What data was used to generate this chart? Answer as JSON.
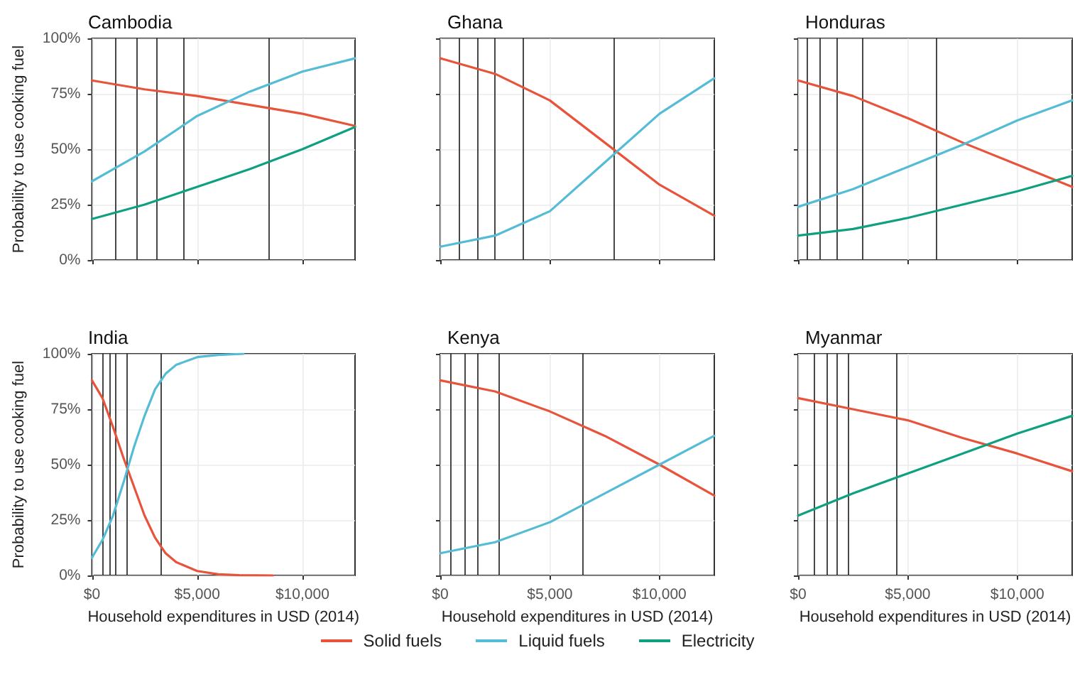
{
  "chart_data": [
    {
      "type": "line",
      "title": "Cambodia",
      "ylabel": "Probability to use cooking fuel",
      "x": [
        0,
        2500,
        5000,
        7500,
        10000,
        12500
      ],
      "xlim": [
        0,
        12500
      ],
      "ylim": [
        0,
        1
      ],
      "xticks": [
        {
          "value": 0,
          "label": null
        },
        {
          "value": 5000,
          "label": null
        },
        {
          "value": 10000,
          "label": null
        }
      ],
      "yticks": [
        {
          "value": 0,
          "label": "0%"
        },
        {
          "value": 0.25,
          "label": "25%"
        },
        {
          "value": 0.5,
          "label": "50%"
        },
        {
          "value": 0.75,
          "label": "75%"
        },
        {
          "value": 1,
          "label": "100%"
        }
      ],
      "tick_labels": "y",
      "grid": true,
      "legend": "bottom",
      "marker": "none",
      "line_style": "solid",
      "series": [
        {
          "name": "Solid fuels",
          "color": "#e8533b",
          "values": [
            0.81,
            0.77,
            0.74,
            0.7,
            0.66,
            0.605
          ]
        },
        {
          "name": "Liquid fuels",
          "color": "#55bcd6",
          "values": [
            0.355,
            0.49,
            0.65,
            0.76,
            0.85,
            0.91
          ]
        },
        {
          "name": "Electricity",
          "color": "#0fa080",
          "values": [
            0.185,
            0.25,
            0.33,
            0.41,
            0.5,
            0.6
          ]
        }
      ],
      "ref_lines": [
        {
          "axis": "x",
          "value": 1100,
          "color": "#333333"
        },
        {
          "axis": "x",
          "value": 2150,
          "color": "#333333"
        },
        {
          "axis": "x",
          "value": 3050,
          "color": "#333333"
        },
        {
          "axis": "x",
          "value": 4350,
          "color": "#333333"
        },
        {
          "axis": "x",
          "value": 8400,
          "color": "#333333"
        }
      ]
    },
    {
      "type": "line",
      "title": "Ghana",
      "x": [
        0,
        2500,
        5000,
        7500,
        10000,
        12500
      ],
      "xlim": [
        0,
        12500
      ],
      "ylim": [
        0,
        1
      ],
      "xticks": [
        {
          "value": 0,
          "label": null
        },
        {
          "value": 5000,
          "label": null
        },
        {
          "value": 10000,
          "label": null
        }
      ],
      "yticks": [
        {
          "value": 0,
          "label": null
        },
        {
          "value": 0.25,
          "label": null
        },
        {
          "value": 0.5,
          "label": null
        },
        {
          "value": 0.75,
          "label": null
        },
        {
          "value": 1,
          "label": null
        }
      ],
      "tick_labels": false,
      "grid": true,
      "marker": "none",
      "line_style": "solid",
      "series": [
        {
          "name": "Solid fuels",
          "color": "#e8533b",
          "values": [
            0.91,
            0.84,
            0.72,
            0.53,
            0.34,
            0.2
          ]
        },
        {
          "name": "Liquid fuels",
          "color": "#55bcd6",
          "values": [
            0.06,
            0.11,
            0.22,
            0.44,
            0.66,
            0.82
          ]
        }
      ],
      "ref_lines": [
        {
          "axis": "x",
          "value": 850,
          "color": "#333333"
        },
        {
          "axis": "x",
          "value": 1700,
          "color": "#333333"
        },
        {
          "axis": "x",
          "value": 2500,
          "color": "#333333"
        },
        {
          "axis": "x",
          "value": 3750,
          "color": "#333333"
        },
        {
          "axis": "x",
          "value": 7900,
          "color": "#333333"
        }
      ]
    },
    {
      "type": "line",
      "title": "Honduras",
      "x": [
        0,
        2500,
        5000,
        7500,
        10000,
        12500
      ],
      "xlim": [
        0,
        12500
      ],
      "ylim": [
        0,
        1
      ],
      "xticks": [
        {
          "value": 0,
          "label": null
        },
        {
          "value": 5000,
          "label": null
        },
        {
          "value": 10000,
          "label": null
        }
      ],
      "yticks": [
        {
          "value": 0,
          "label": null
        },
        {
          "value": 0.25,
          "label": null
        },
        {
          "value": 0.5,
          "label": null
        },
        {
          "value": 0.75,
          "label": null
        },
        {
          "value": 1,
          "label": null
        }
      ],
      "tick_labels": false,
      "grid": true,
      "marker": "none",
      "line_style": "solid",
      "series": [
        {
          "name": "Solid fuels",
          "color": "#e8533b",
          "values": [
            0.81,
            0.74,
            0.64,
            0.53,
            0.43,
            0.33
          ]
        },
        {
          "name": "Liquid fuels",
          "color": "#55bcd6",
          "values": [
            0.24,
            0.32,
            0.42,
            0.52,
            0.63,
            0.72
          ]
        },
        {
          "name": "Electricity",
          "color": "#0fa080",
          "values": [
            0.11,
            0.14,
            0.19,
            0.25,
            0.31,
            0.38
          ]
        }
      ],
      "ref_lines": [
        {
          "axis": "x",
          "value": 400,
          "color": "#333333"
        },
        {
          "axis": "x",
          "value": 1000,
          "color": "#333333"
        },
        {
          "axis": "x",
          "value": 1750,
          "color": "#333333"
        },
        {
          "axis": "x",
          "value": 2900,
          "color": "#333333"
        },
        {
          "axis": "x",
          "value": 6300,
          "color": "#333333"
        }
      ]
    },
    {
      "type": "line",
      "title": "India",
      "ylabel": "Probability to use cooking fuel",
      "xlabel": "Household expenditures in USD (2014)",
      "xlim": [
        0,
        12500
      ],
      "ylim": [
        0,
        1
      ],
      "xticks": [
        {
          "value": 0,
          "label": "$0"
        },
        {
          "value": 5000,
          "label": "$5,000"
        },
        {
          "value": 10000,
          "label": "$10,000"
        }
      ],
      "yticks": [
        {
          "value": 0,
          "label": "0%"
        },
        {
          "value": 0.25,
          "label": "25%"
        },
        {
          "value": 0.5,
          "label": "50%"
        },
        {
          "value": 0.75,
          "label": "75%"
        },
        {
          "value": 1,
          "label": "100%"
        }
      ],
      "grid": true,
      "marker": "none",
      "line_style": "solid",
      "series": [
        {
          "name": "Solid fuels",
          "color": "#e8533b",
          "x": [
            0,
            500,
            1000,
            1500,
            2000,
            2500,
            3000,
            3500,
            4000,
            5000,
            6000,
            7000,
            8600
          ],
          "values": [
            0.88,
            0.8,
            0.67,
            0.53,
            0.4,
            0.27,
            0.17,
            0.1,
            0.06,
            0.02,
            0.005,
            0.001,
            0
          ]
        },
        {
          "name": "Liquid fuels",
          "color": "#55bcd6",
          "x": [
            0,
            500,
            1000,
            1500,
            2000,
            2500,
            3000,
            3500,
            4000,
            5000,
            6000,
            7200
          ],
          "values": [
            0.08,
            0.16,
            0.27,
            0.42,
            0.58,
            0.72,
            0.84,
            0.91,
            0.95,
            0.985,
            0.995,
            1
          ]
        }
      ],
      "ref_lines": [
        {
          "axis": "x",
          "value": 500,
          "color": "#333333"
        },
        {
          "axis": "x",
          "value": 850,
          "color": "#333333"
        },
        {
          "axis": "x",
          "value": 1100,
          "color": "#333333"
        },
        {
          "axis": "x",
          "value": 1650,
          "color": "#333333"
        },
        {
          "axis": "x",
          "value": 3300,
          "color": "#333333"
        }
      ]
    },
    {
      "type": "line",
      "title": "Kenya",
      "xlabel": "Household expenditures in USD (2014)",
      "x": [
        0,
        2500,
        5000,
        7500,
        10000,
        12500
      ],
      "xlim": [
        0,
        12500
      ],
      "ylim": [
        0,
        1
      ],
      "xticks": [
        {
          "value": 0,
          "label": "$0"
        },
        {
          "value": 5000,
          "label": "$5,000"
        },
        {
          "value": 10000,
          "label": "$10,000"
        }
      ],
      "yticks": [
        {
          "value": 0,
          "label": null
        },
        {
          "value": 0.25,
          "label": null
        },
        {
          "value": 0.5,
          "label": null
        },
        {
          "value": 0.75,
          "label": null
        },
        {
          "value": 1,
          "label": null
        }
      ],
      "tick_labels": "x",
      "grid": true,
      "marker": "none",
      "line_style": "solid",
      "series": [
        {
          "name": "Solid fuels",
          "color": "#e8533b",
          "values": [
            0.88,
            0.83,
            0.74,
            0.63,
            0.5,
            0.36
          ]
        },
        {
          "name": "Liquid fuels",
          "color": "#55bcd6",
          "values": [
            0.1,
            0.15,
            0.24,
            0.37,
            0.5,
            0.63
          ]
        }
      ],
      "ref_lines": [
        {
          "axis": "x",
          "value": 450,
          "color": "#333333"
        },
        {
          "axis": "x",
          "value": 1100,
          "color": "#333333"
        },
        {
          "axis": "x",
          "value": 1700,
          "color": "#333333"
        },
        {
          "axis": "x",
          "value": 2700,
          "color": "#333333"
        },
        {
          "axis": "x",
          "value": 6500,
          "color": "#333333"
        }
      ]
    },
    {
      "type": "line",
      "title": "Myanmar",
      "xlabel": "Household expenditures in USD (2014)",
      "x": [
        0,
        2500,
        5000,
        7500,
        10000,
        12500
      ],
      "xlim": [
        0,
        12500
      ],
      "ylim": [
        0,
        1
      ],
      "xticks": [
        {
          "value": 0,
          "label": "$0"
        },
        {
          "value": 5000,
          "label": "$5,000"
        },
        {
          "value": 10000,
          "label": "$10,000"
        }
      ],
      "yticks": [
        {
          "value": 0,
          "label": null
        },
        {
          "value": 0.25,
          "label": null
        },
        {
          "value": 0.5,
          "label": null
        },
        {
          "value": 0.75,
          "label": null
        },
        {
          "value": 1,
          "label": null
        }
      ],
      "tick_labels": "x",
      "grid": true,
      "marker": "none",
      "line_style": "solid",
      "series": [
        {
          "name": "Solid fuels",
          "color": "#e8533b",
          "values": [
            0.8,
            0.75,
            0.7,
            0.62,
            0.55,
            0.47
          ]
        },
        {
          "name": "Electricity",
          "color": "#0fa080",
          "values": [
            0.27,
            0.37,
            0.46,
            0.55,
            0.64,
            0.72
          ]
        }
      ],
      "ref_lines": [
        {
          "axis": "x",
          "value": 700,
          "color": "#333333"
        },
        {
          "axis": "x",
          "value": 1300,
          "color": "#333333"
        },
        {
          "axis": "x",
          "value": 1750,
          "color": "#333333"
        },
        {
          "axis": "x",
          "value": 2300,
          "color": "#333333"
        },
        {
          "axis": "x",
          "value": 4500,
          "color": "#333333"
        }
      ]
    }
  ]
}
